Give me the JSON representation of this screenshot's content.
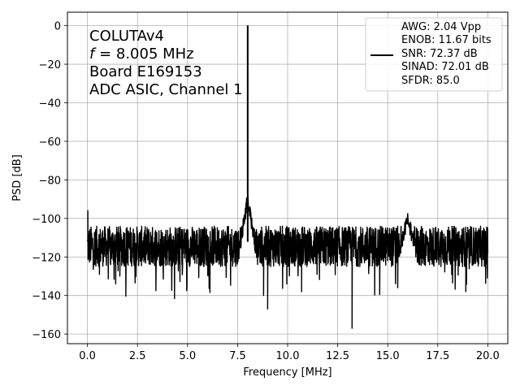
{
  "chart_data": {
    "type": "line",
    "xlabel": "Frequency [MHz]",
    "ylabel": "PSD [dB]",
    "xlim": [
      -1,
      21
    ],
    "ylim": [
      -165,
      7
    ],
    "grid": true,
    "x_ticks": [
      0.0,
      2.5,
      5.0,
      7.5,
      10.0,
      12.5,
      15.0,
      17.5,
      20.0
    ],
    "x_tick_labels": [
      "0.0",
      "2.5",
      "5.0",
      "7.5",
      "10.0",
      "12.5",
      "15.0",
      "17.5",
      "20.0"
    ],
    "y_ticks": [
      0,
      -20,
      -40,
      -60,
      -80,
      -100,
      -120,
      -140,
      -160
    ],
    "y_tick_labels": [
      "0",
      "−20",
      "−40",
      "−60",
      "−80",
      "−100",
      "−120",
      "−140",
      "−160"
    ],
    "annotation": {
      "lines": [
        "COLUTAv4",
        "f = 8.005 MHz",
        "Board E169153",
        "ADC ASIC, Channel  1"
      ]
    },
    "legend": {
      "position": "upper-right",
      "lines": [
        "AWG: 2.04 Vpp",
        "ENOB: 11.67 bits",
        "SNR: 72.37 dB",
        "SINAD: 72.01 dB",
        "SFDR: 85.0"
      ]
    },
    "series": [
      {
        "color": "#000000",
        "noise_floor_db": -115,
        "noise_band_db": [
          -125,
          -104
        ],
        "fundamental": {
          "x": 8.005,
          "y": 0
        },
        "harmonic_skirts": [
          {
            "x": 8.0,
            "y": -86
          },
          {
            "x": 16.0,
            "y": -96
          }
        ],
        "spurs": [
          {
            "x": 0.02,
            "y": -96
          },
          {
            "x": 8.8,
            "y": -140
          },
          {
            "x": 9.0,
            "y": -147
          },
          {
            "x": 10.7,
            "y": -138
          },
          {
            "x": 13.22,
            "y": -157
          },
          {
            "x": 15.5,
            "y": -136
          },
          {
            "x": 18.9,
            "y": -138
          }
        ]
      }
    ]
  }
}
